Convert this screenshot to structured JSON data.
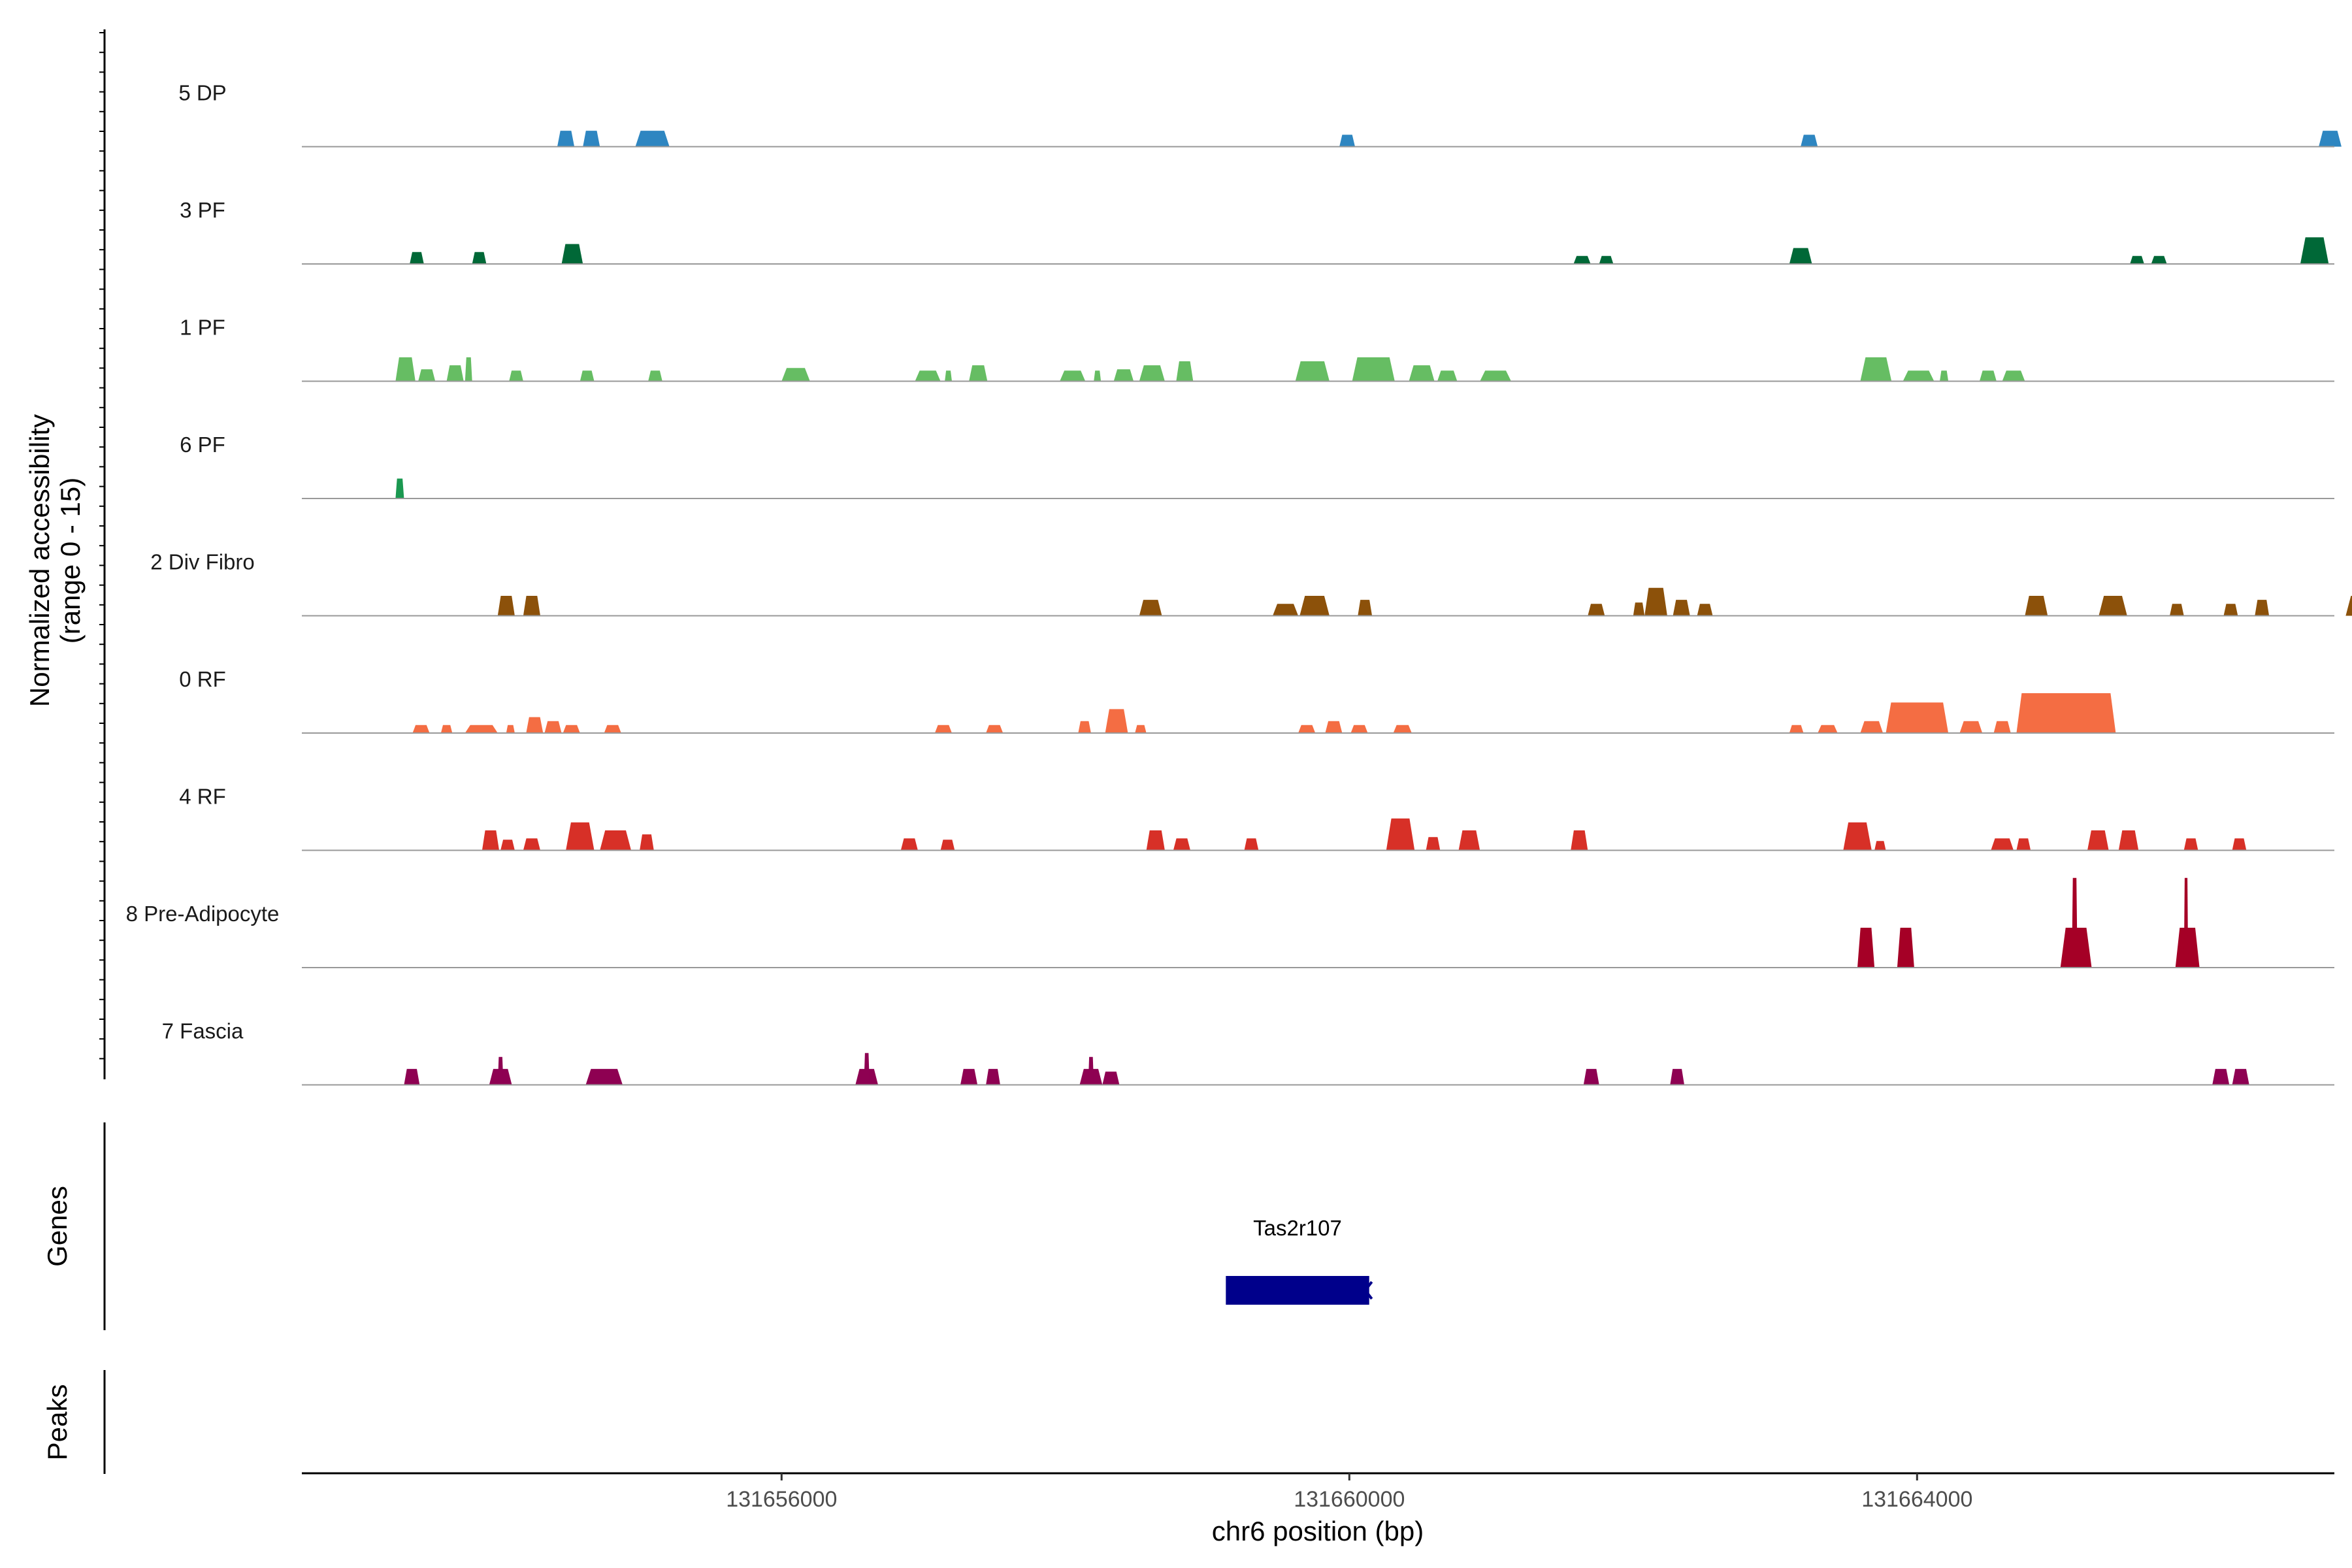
{
  "chart_data": {
    "type": "area",
    "ylabel_line1": "Normalized accessibility",
    "ylabel_line2": "(range 0 - 15)",
    "ylim": [
      0,
      15
    ],
    "xlabel": "chr6 position (bp)",
    "xlim": [
      131652620,
      131666940
    ],
    "x_ticks": [
      131656000,
      131660000,
      131664000
    ],
    "x_tick_labels": [
      "131656000",
      "131660000",
      "131664000"
    ],
    "genes_panel_label": "Genes",
    "peaks_panel_label": "Peaks",
    "genes": [
      {
        "name": "Tas2r107",
        "start": 131659130,
        "end": 131660140,
        "color": "#00008B",
        "strand": "-"
      }
    ],
    "series": [
      {
        "name": "5 DP",
        "color": "#2E86C1",
        "peaks": [
          [
            131654420,
            131654540,
            2.4
          ],
          [
            131654600,
            131654720,
            2.4
          ],
          [
            131654970,
            131655210,
            2.4
          ],
          [
            131659930,
            131660040,
            1.8
          ],
          [
            131663180,
            131663300,
            1.8
          ],
          [
            131666830,
            131666990,
            2.4
          ]
        ]
      },
      {
        "name": "3 PF",
        "color": "#006837",
        "peaks": [
          [
            131653380,
            131653480,
            1.8
          ],
          [
            131653820,
            131653920,
            1.8
          ],
          [
            131654450,
            131654600,
            3.0
          ],
          [
            131661580,
            131661700,
            1.2
          ],
          [
            131661760,
            131661860,
            1.2
          ],
          [
            131663100,
            131663260,
            2.4
          ],
          [
            131665500,
            131665600,
            1.2
          ],
          [
            131665650,
            131665760,
            1.2
          ],
          [
            131666700,
            131666900,
            4.0
          ]
        ]
      },
      {
        "name": "1 PF",
        "color": "#66BD63",
        "peaks": [
          [
            131653280,
            131653420,
            3.6
          ],
          [
            131653440,
            131653560,
            1.8
          ],
          [
            131653640,
            131653760,
            2.4
          ],
          [
            131653770,
            131653820,
            3.6
          ],
          [
            131654080,
            131654180,
            1.6
          ],
          [
            131654580,
            131654680,
            1.6
          ],
          [
            131655060,
            131655160,
            1.6
          ],
          [
            131656000,
            131656200,
            2.0
          ],
          [
            131656940,
            131657120,
            1.6
          ],
          [
            131657150,
            131657200,
            1.6
          ],
          [
            131657320,
            131657450,
            2.4
          ],
          [
            131657960,
            131658140,
            1.6
          ],
          [
            131658200,
            131658250,
            1.6
          ],
          [
            131658340,
            131658480,
            1.8
          ],
          [
            131658520,
            131658700,
            2.4
          ],
          [
            131658780,
            131658900,
            3.0
          ],
          [
            131659620,
            131659860,
            3.0
          ],
          [
            131660020,
            131660320,
            3.6
          ],
          [
            131660420,
            131660600,
            2.4
          ],
          [
            131660620,
            131660760,
            1.6
          ],
          [
            131660920,
            131661140,
            1.6
          ],
          [
            131663600,
            131663820,
            3.6
          ],
          [
            131663900,
            131664120,
            1.6
          ],
          [
            131664160,
            131664220,
            1.6
          ],
          [
            131664440,
            131664560,
            1.6
          ],
          [
            131664600,
            131664760,
            1.6
          ]
        ]
      },
      {
        "name": "6 PF",
        "color": "#1A9850",
        "peaks": [
          [
            131653280,
            131653340,
            3.0
          ]
        ]
      },
      {
        "name": "2 Div Fibro",
        "color": "#8C510A",
        "peaks": [
          [
            131654000,
            131654120,
            3.0
          ],
          [
            131654180,
            131654300,
            3.0
          ],
          [
            131658520,
            131658680,
            2.4
          ],
          [
            131659460,
            131659640,
            1.8
          ],
          [
            131659650,
            131659860,
            3.0
          ],
          [
            131660060,
            131660160,
            2.4
          ],
          [
            131661680,
            131661800,
            1.8
          ],
          [
            131662080,
            131662240,
            4.2
          ],
          [
            131662280,
            131662400,
            2.4
          ],
          [
            131662450,
            131662560,
            1.8
          ],
          [
            131664760,
            131664920,
            3.0
          ],
          [
            131665280,
            131665480,
            3.0
          ],
          [
            131665780,
            131665880,
            1.8
          ],
          [
            131666160,
            131666260,
            1.8
          ],
          [
            131667020,
            131667260,
            3.0
          ],
          [
            131666380,
            131666480,
            2.4
          ],
          [
            131662000,
            131662080,
            2.0
          ]
        ]
      },
      {
        "name": "0 RF",
        "color": "#F46D43",
        "peaks": [
          [
            131653400,
            131653520,
            1.2
          ],
          [
            131653600,
            131653680,
            1.2
          ],
          [
            131653770,
            131654000,
            1.2
          ],
          [
            131654060,
            131654120,
            1.2
          ],
          [
            131654200,
            131654320,
            2.4
          ],
          [
            131654330,
            131654450,
            1.8
          ],
          [
            131654460,
            131654580,
            1.2
          ],
          [
            131654750,
            131654870,
            1.2
          ],
          [
            131657080,
            131657200,
            1.2
          ],
          [
            131657440,
            131657560,
            1.2
          ],
          [
            131658090,
            131658180,
            1.8
          ],
          [
            131658280,
            131658440,
            3.6
          ],
          [
            131658490,
            131658570,
            1.2
          ],
          [
            131659640,
            131659760,
            1.2
          ],
          [
            131659830,
            131659950,
            1.8
          ],
          [
            131660010,
            131660130,
            1.2
          ],
          [
            131660310,
            131660440,
            1.2
          ],
          [
            131663100,
            131663200,
            1.2
          ],
          [
            131663300,
            131663440,
            1.2
          ],
          [
            131663600,
            131663760,
            1.8
          ],
          [
            131663780,
            131664220,
            4.6
          ],
          [
            131664300,
            131664460,
            1.8
          ],
          [
            131664540,
            131664660,
            1.8
          ],
          [
            131664700,
            131665400,
            6.0
          ]
        ]
      },
      {
        "name": "4 RF",
        "color": "#D73027",
        "peaks": [
          [
            131653890,
            131654010,
            3.0
          ],
          [
            131654020,
            131654120,
            1.6
          ],
          [
            131654180,
            131654300,
            1.8
          ],
          [
            131654480,
            131654680,
            4.2
          ],
          [
            131654720,
            131654940,
            3.0
          ],
          [
            131655000,
            131655100,
            2.4
          ],
          [
            131656840,
            131656960,
            1.8
          ],
          [
            131657120,
            131657220,
            1.6
          ],
          [
            131658570,
            131658700,
            3.0
          ],
          [
            131658760,
            131658880,
            1.8
          ],
          [
            131659260,
            131659360,
            1.8
          ],
          [
            131660260,
            131660460,
            4.8
          ],
          [
            131660540,
            131660640,
            2.0
          ],
          [
            131660770,
            131660920,
            3.0
          ],
          [
            131661560,
            131661680,
            3.0
          ],
          [
            131663480,
            131663680,
            4.2
          ],
          [
            131663700,
            131663780,
            1.4
          ],
          [
            131664520,
            131664680,
            1.8
          ],
          [
            131664700,
            131664800,
            1.8
          ],
          [
            131665200,
            131665350,
            3.0
          ],
          [
            131665420,
            131665560,
            3.0
          ],
          [
            131665880,
            131665980,
            1.8
          ],
          [
            131666220,
            131666320,
            1.8
          ]
        ]
      },
      {
        "name": "8 Pre-Adipocyte",
        "color": "#A50026",
        "peaks": [
          [
            131663580,
            131663700,
            6.0
          ],
          [
            131663860,
            131663980,
            6.0
          ],
          [
            131665010,
            131665230,
            6.0
          ],
          [
            131665090,
            131665130,
            13.5
          ],
          [
            131665820,
            131665990,
            6.0
          ],
          [
            131665880,
            131665910,
            13.5
          ]
        ]
      },
      {
        "name": "7 Fascia",
        "color": "#8E0152",
        "peaks": [
          [
            131653340,
            131653450,
            2.4
          ],
          [
            131653940,
            131654100,
            2.4
          ],
          [
            131654000,
            131654040,
            4.2
          ],
          [
            131654620,
            131654880,
            2.4
          ],
          [
            131656520,
            131656680,
            2.4
          ],
          [
            131656580,
            131656620,
            4.8
          ],
          [
            131657260,
            131657380,
            2.4
          ],
          [
            131657440,
            131657540,
            2.4
          ],
          [
            131658100,
            131658260,
            2.4
          ],
          [
            131658160,
            131658200,
            4.2
          ],
          [
            131658260,
            131658380,
            2.0
          ],
          [
            131661650,
            131661760,
            2.4
          ],
          [
            131662260,
            131662360,
            2.4
          ],
          [
            131666080,
            131666200,
            2.4
          ],
          [
            131666220,
            131666340,
            2.4
          ]
        ]
      }
    ]
  }
}
